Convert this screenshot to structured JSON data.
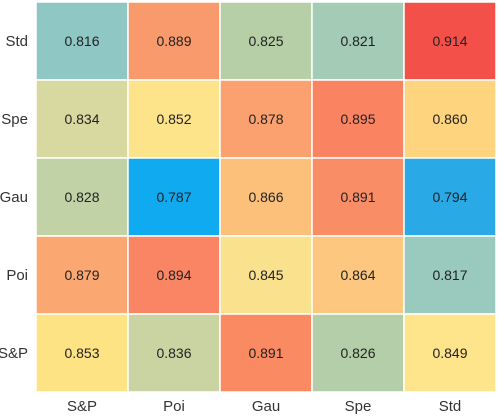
{
  "chart_data": {
    "type": "heatmap",
    "x_categories": [
      "S&P",
      "Poi",
      "Gau",
      "Spe",
      "Std"
    ],
    "y_categories": [
      "Std",
      "Spe",
      "Gau",
      "Poi",
      "S&P"
    ],
    "values": [
      [
        0.816,
        0.889,
        0.825,
        0.821,
        0.914
      ],
      [
        0.834,
        0.852,
        0.878,
        0.895,
        0.86
      ],
      [
        0.828,
        0.787,
        0.866,
        0.891,
        0.794
      ],
      [
        0.879,
        0.894,
        0.845,
        0.864,
        0.817
      ],
      [
        0.853,
        0.836,
        0.891,
        0.826,
        0.849
      ]
    ],
    "value_labels": [
      [
        "0.816",
        "0.889",
        "0.825",
        "0.821",
        "0.914"
      ],
      [
        "0.834",
        "0.852",
        "0.878",
        "0.895",
        "0.860"
      ],
      [
        "0.828",
        "0.787",
        "0.866",
        "0.891",
        "0.794"
      ],
      [
        "0.879",
        "0.894",
        "0.845",
        "0.864",
        "0.817"
      ],
      [
        "0.853",
        "0.836",
        "0.891",
        "0.826",
        "0.849"
      ]
    ],
    "cell_colors": [
      [
        "#8fc7c4",
        "#f99a6d",
        "#b7cfa7",
        "#a3cbb5",
        "#f4504a"
      ],
      [
        "#d7d9a0",
        "#fde389",
        "#fba170",
        "#fa8361",
        "#fed47e"
      ],
      [
        "#c0d2a6",
        "#0faaf0",
        "#fcc07b",
        "#f98d66",
        "#29a9e5"
      ],
      [
        "#fba771",
        "#f98564",
        "#f9e18d",
        "#fdc77f",
        "#99cabd"
      ],
      [
        "#fee385",
        "#cad4a3",
        "#f98a62",
        "#b4cea9",
        "#fee48b"
      ]
    ],
    "xlabel": "",
    "ylabel": "",
    "title": "",
    "grid": false,
    "legend": "none"
  }
}
